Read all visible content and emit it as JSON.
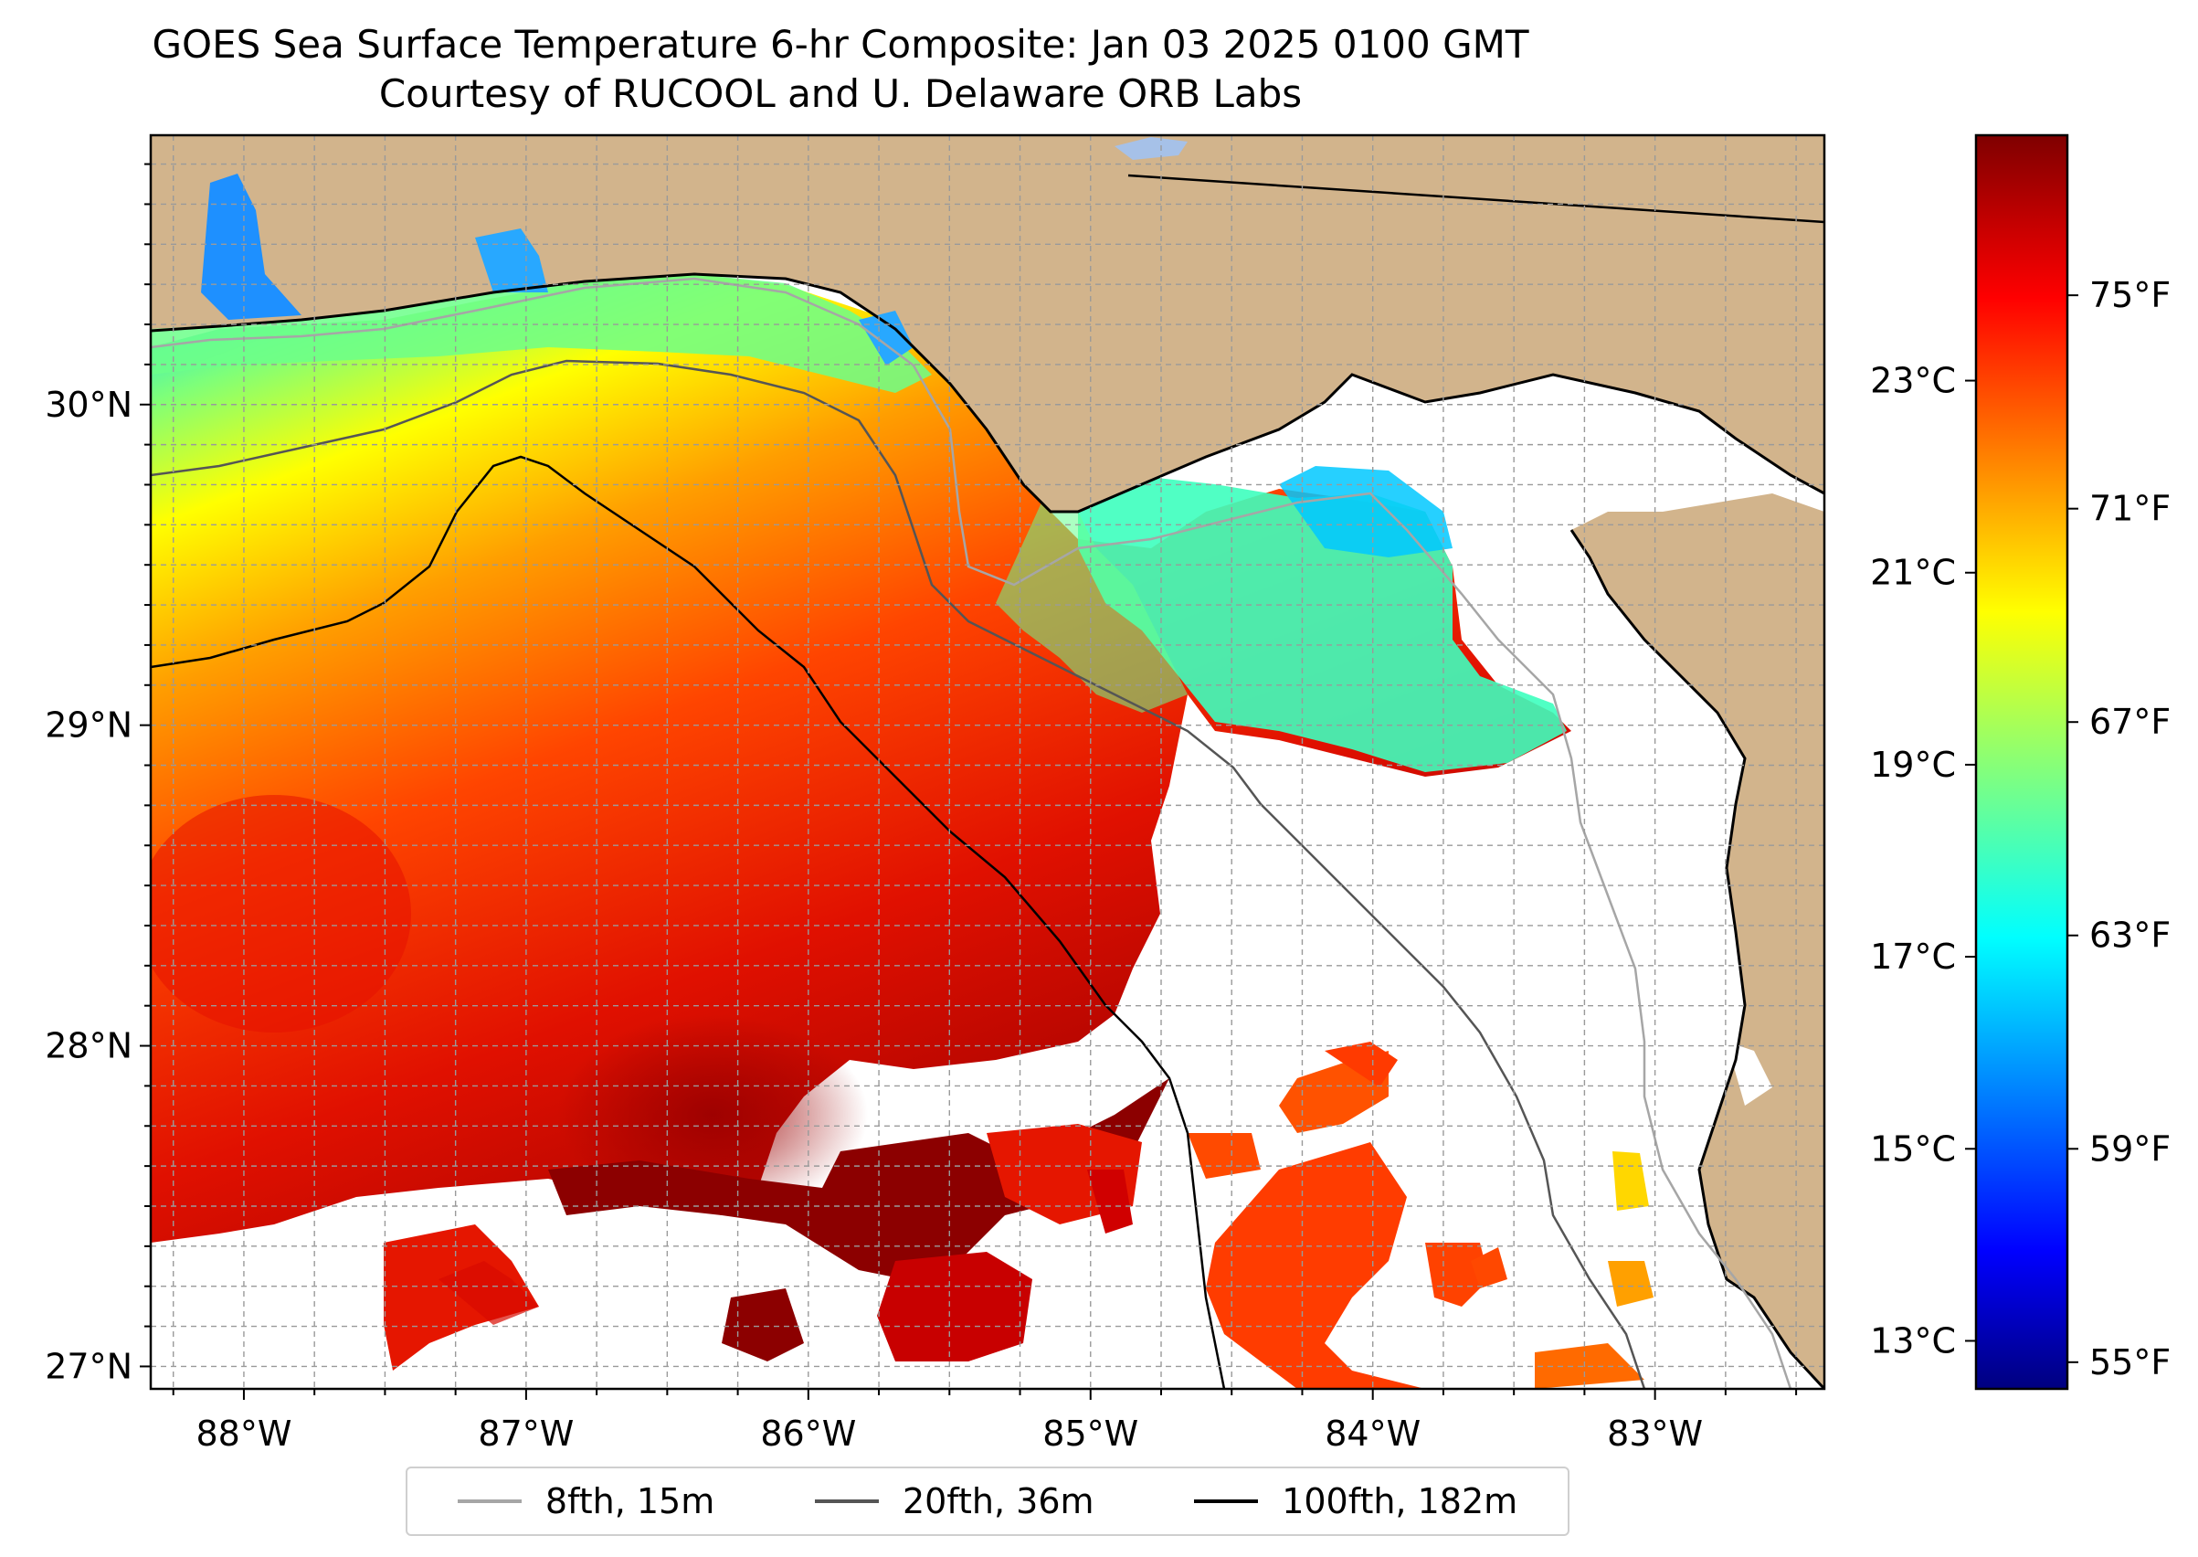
{
  "header": {
    "title": "GOES Sea Surface Temperature 6-hr Composite: Jan 03 2025 0100 GMT",
    "subtitle": "Courtesy of RUCOOL and U. Delaware ORB Labs"
  },
  "map": {
    "extent": {
      "lon": [
        -88.33,
        -82.4
      ],
      "lat": [
        26.93,
        30.84
      ]
    },
    "lon_ticks": [
      {
        "value": -88,
        "label": "88°W"
      },
      {
        "value": -87,
        "label": "87°W"
      },
      {
        "value": -86,
        "label": "86°W"
      },
      {
        "value": -85,
        "label": "85°W"
      },
      {
        "value": -84,
        "label": "84°W"
      },
      {
        "value": -83,
        "label": "83°W"
      }
    ],
    "lat_ticks": [
      {
        "value": 27,
        "label": "27°N"
      },
      {
        "value": 28,
        "label": "28°N"
      },
      {
        "value": 29,
        "label": "29°N"
      },
      {
        "value": 30,
        "label": "30°N"
      }
    ],
    "grid": "dashed",
    "colors": {
      "land": "#d2b48c",
      "no_data": "#ffffff",
      "lake": "#a6c1e8"
    }
  },
  "colorbar": {
    "colormap": "jet",
    "range_f": [
      54.5,
      78.0
    ],
    "fahrenheit_ticks": [
      {
        "value": 55,
        "label": "55°F"
      },
      {
        "value": 59,
        "label": "59°F"
      },
      {
        "value": 63,
        "label": "63°F"
      },
      {
        "value": 67,
        "label": "67°F"
      },
      {
        "value": 71,
        "label": "71°F"
      },
      {
        "value": 75,
        "label": "75°F"
      }
    ],
    "celsius_ticks": [
      {
        "value": 13,
        "label": "13°C"
      },
      {
        "value": 15,
        "label": "15°C"
      },
      {
        "value": 17,
        "label": "17°C"
      },
      {
        "value": 19,
        "label": "19°C"
      },
      {
        "value": 21,
        "label": "21°C"
      },
      {
        "value": 23,
        "label": "23°C"
      }
    ]
  },
  "legend": {
    "position": "bottom",
    "items": [
      {
        "label": "8fth, 15m",
        "color": "#a6a6a6"
      },
      {
        "label": "20fth, 36m",
        "color": "#555555"
      },
      {
        "label": "100fth, 182m",
        "color": "#000000"
      }
    ]
  }
}
